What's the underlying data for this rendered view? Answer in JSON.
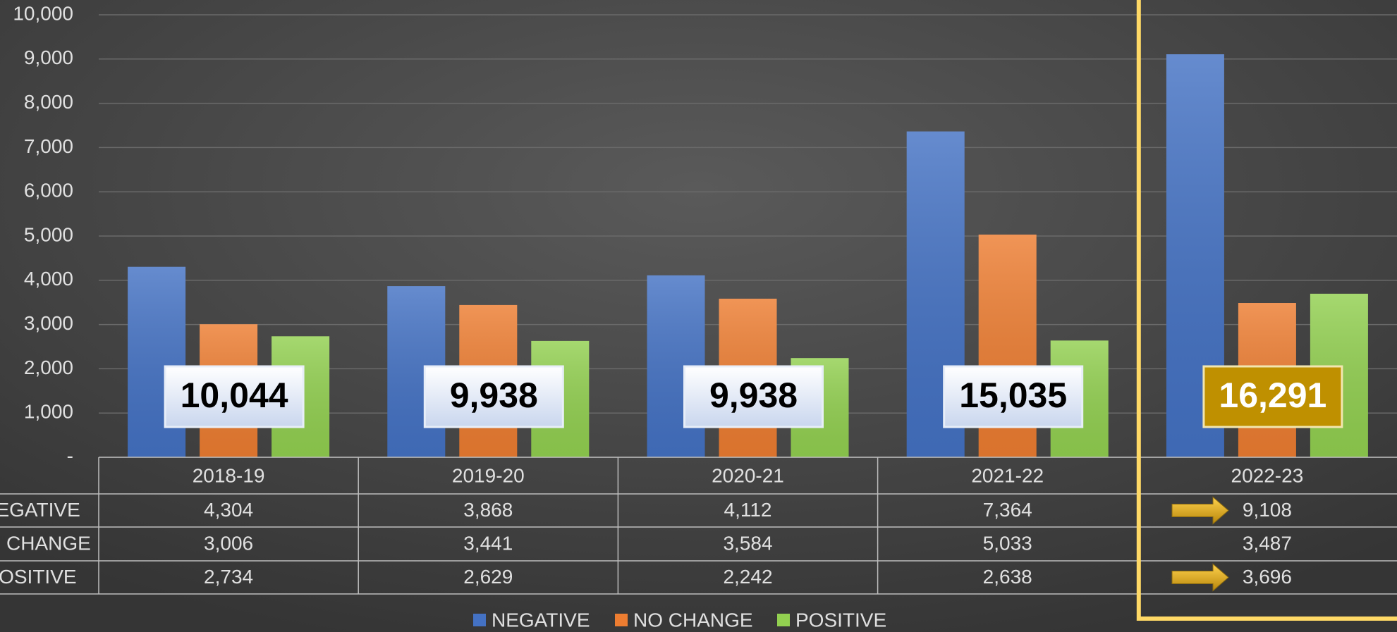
{
  "chart_data": {
    "type": "bar",
    "categories": [
      "2018-19",
      "2019-20",
      "2020-21",
      "2021-22",
      "2022-23"
    ],
    "series": [
      {
        "name": "NEGATIVE",
        "color": "#4472c4",
        "values": [
          4304,
          3868,
          4112,
          7364,
          9108
        ],
        "value_labels": [
          "4,304",
          "3,868",
          "4,112",
          "7,364",
          "9,108"
        ]
      },
      {
        "name": "NO CHANGE",
        "color": "#ed7d31",
        "values": [
          3006,
          3441,
          3584,
          5033,
          3487
        ],
        "value_labels": [
          "3,006",
          "3,441",
          "3,584",
          "5,033",
          "3,487"
        ]
      },
      {
        "name": "POSITIVE",
        "color": "#92d050",
        "values": [
          2734,
          2629,
          2242,
          2638,
          3696
        ],
        "value_labels": [
          "2,734",
          "2,629",
          "2,242",
          "2,638",
          "3,696"
        ]
      }
    ],
    "totals": [
      10044,
      9938,
      9938,
      15035,
      16291
    ],
    "total_labels": [
      "10,044",
      "9,938",
      "9,938",
      "15,035",
      "16,291"
    ],
    "ylim": [
      0,
      10000
    ],
    "yticks": [
      {
        "value": 0,
        "label": "-"
      },
      {
        "value": 1000,
        "label": "1,000"
      },
      {
        "value": 2000,
        "label": "2,000"
      },
      {
        "value": 3000,
        "label": "3,000"
      },
      {
        "value": 4000,
        "label": "4,000"
      },
      {
        "value": 5000,
        "label": "5,000"
      },
      {
        "value": 6000,
        "label": "6,000"
      },
      {
        "value": 7000,
        "label": "7,000"
      },
      {
        "value": 8000,
        "label": "8,000"
      },
      {
        "value": 9000,
        "label": "9,000"
      },
      {
        "value": 10000,
        "label": "10,000"
      }
    ],
    "grid": true,
    "legend": "bottom"
  }
}
